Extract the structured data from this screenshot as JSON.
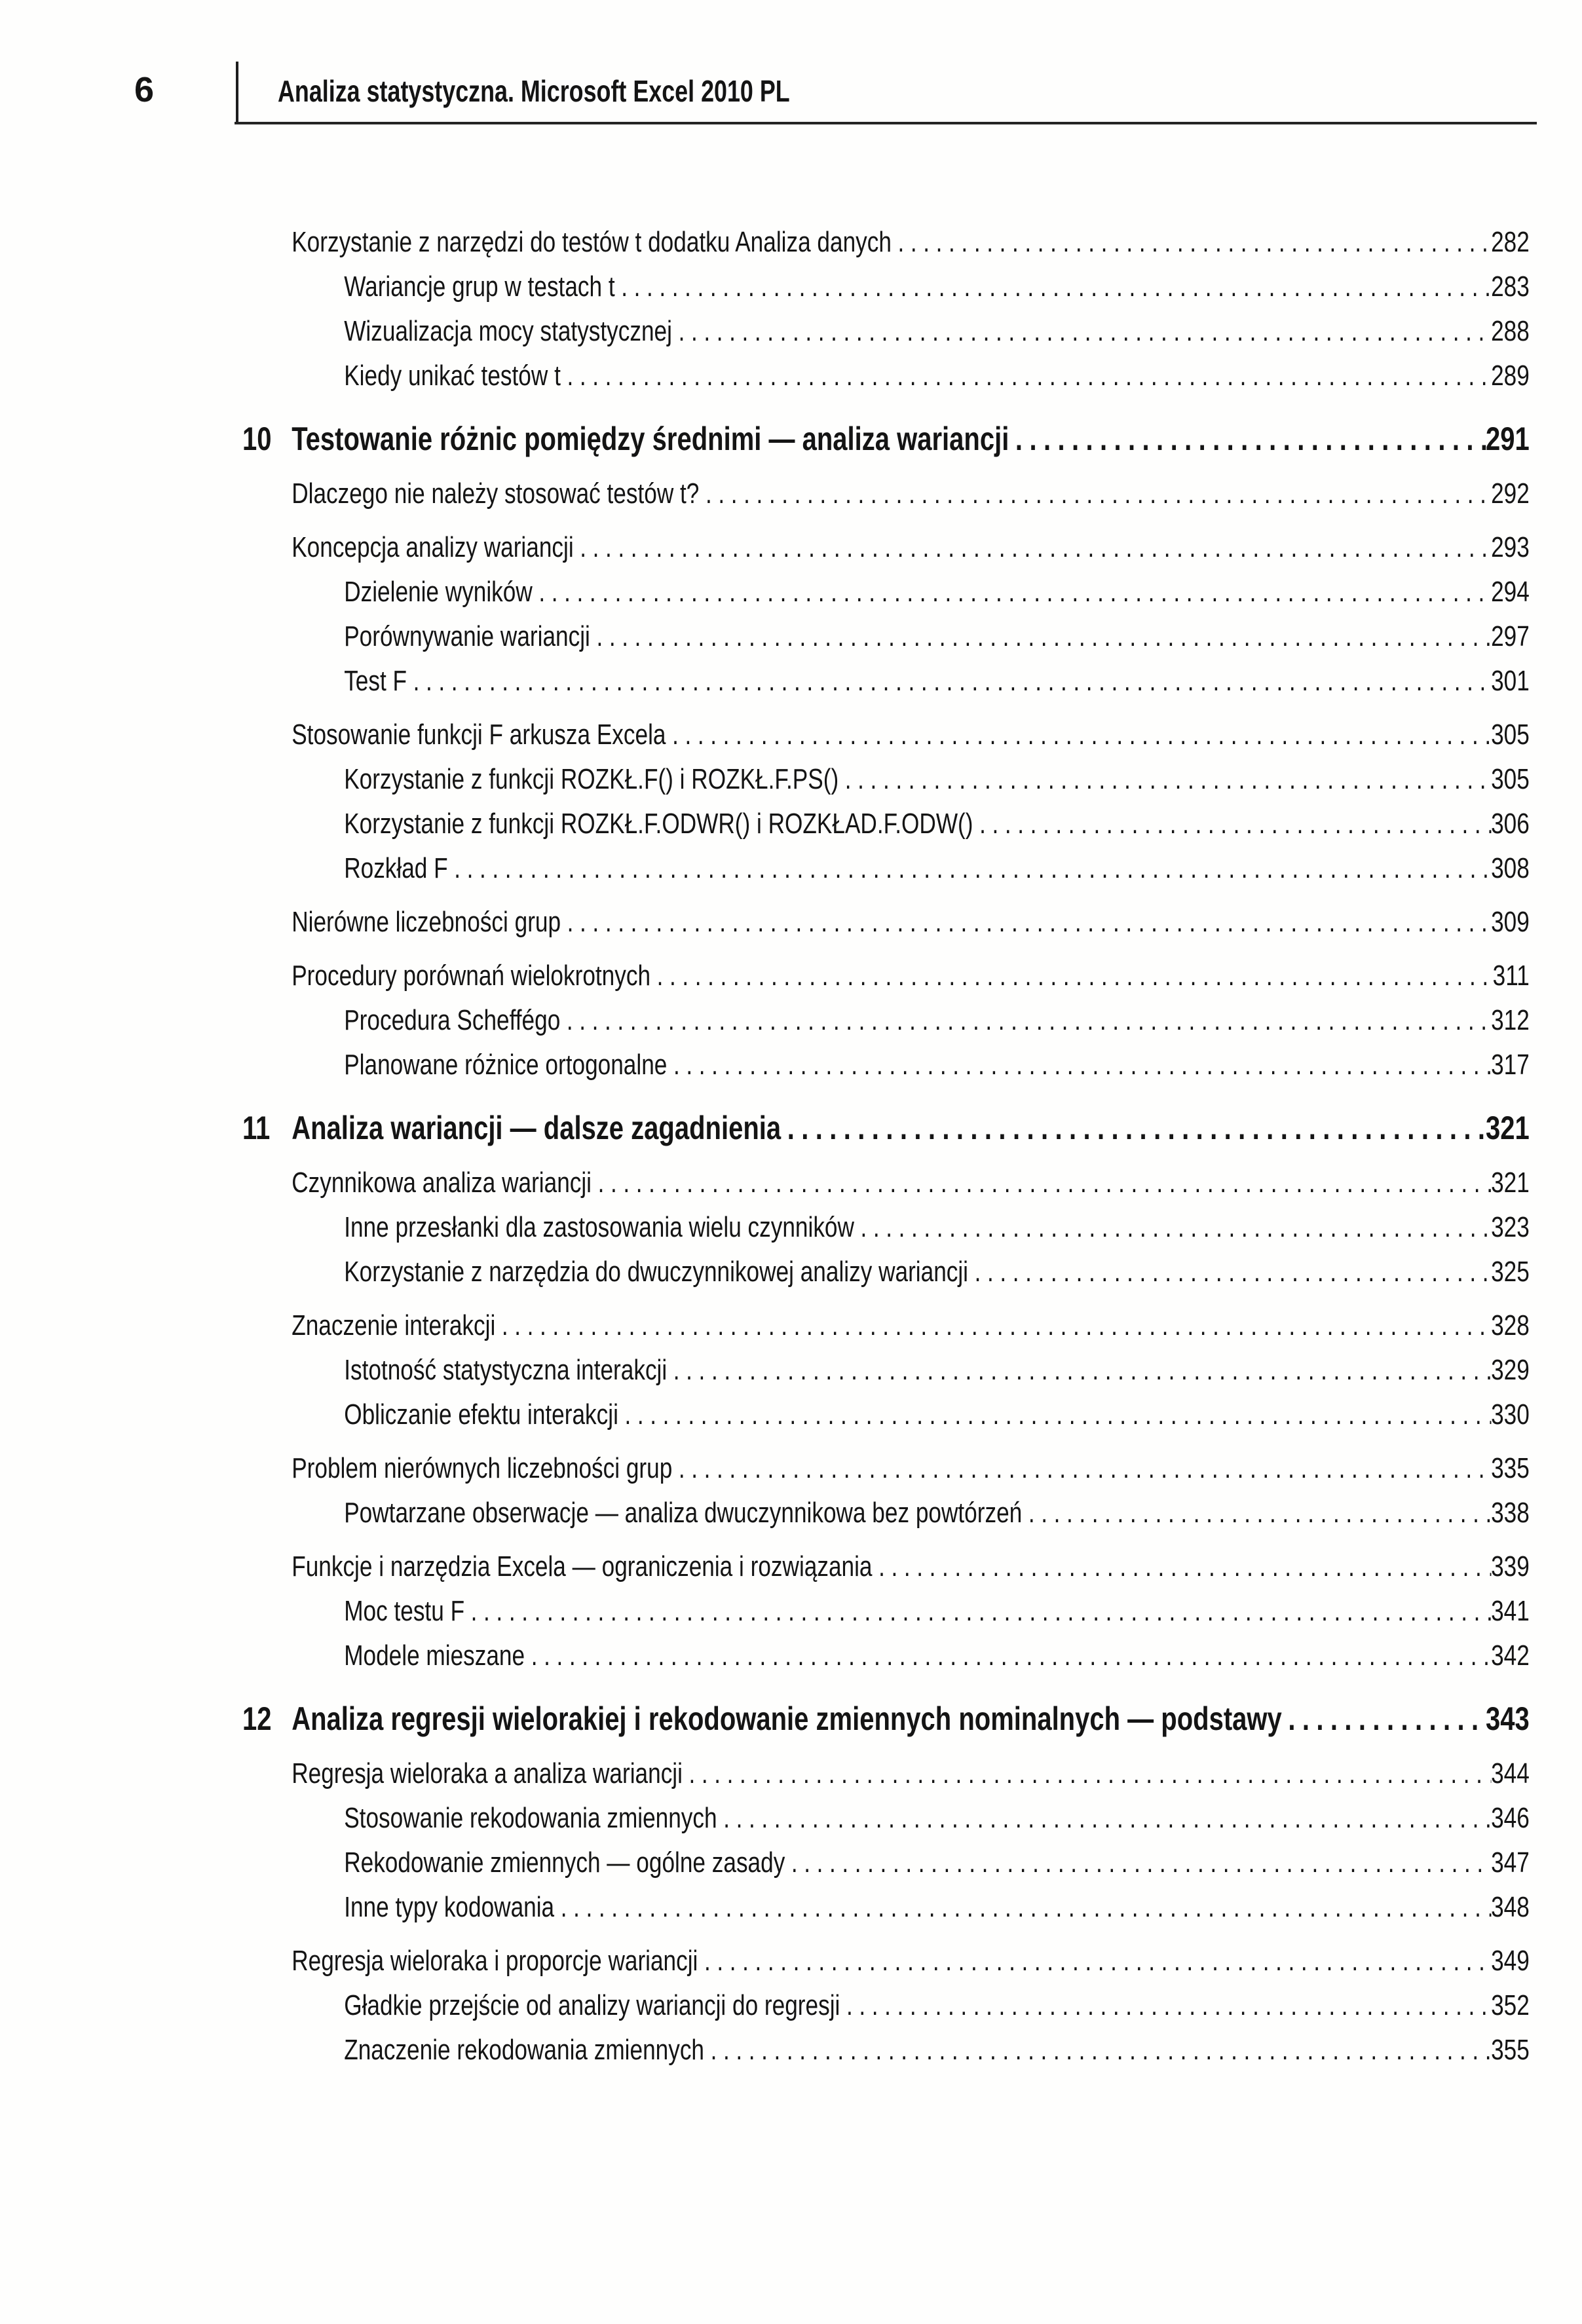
{
  "header": {
    "page_number": "6",
    "running_title": "Analiza statystyczna. Microsoft Excel 2010 PL"
  },
  "toc": {
    "entries": [
      {
        "level": 2,
        "label": "Korzystanie z narzędzi do testów t dodatku Analiza danych",
        "page": "282"
      },
      {
        "level": 3,
        "label": "Wariancje grup w testach t",
        "page": "283"
      },
      {
        "level": 3,
        "label": "Wizualizacja mocy statystycznej",
        "page": "288"
      },
      {
        "level": 3,
        "label": "Kiedy unikać testów t",
        "page": "289"
      },
      {
        "level": 1,
        "number": "10",
        "label": "Testowanie różnic pomiędzy średnimi — analiza wariancji",
        "page": "291"
      },
      {
        "level": 2,
        "label": "Dlaczego nie należy stosować testów t?",
        "page": "292"
      },
      {
        "level": 2,
        "label": "Koncepcja analizy wariancji",
        "page": "293"
      },
      {
        "level": 3,
        "label": "Dzielenie wyników",
        "page": "294"
      },
      {
        "level": 3,
        "label": "Porównywanie wariancji",
        "page": "297"
      },
      {
        "level": 3,
        "label": "Test F",
        "page": "301"
      },
      {
        "level": 2,
        "label": "Stosowanie funkcji F arkusza Excela",
        "page": "305"
      },
      {
        "level": 3,
        "label": "Korzystanie z funkcji ROZKŁ.F() i ROZKŁ.F.PS()",
        "page": "305"
      },
      {
        "level": 3,
        "label": "Korzystanie z funkcji ROZKŁ.F.ODWR() i ROZKŁAD.F.ODW()",
        "page": "306"
      },
      {
        "level": 3,
        "label": "Rozkład F",
        "page": "308"
      },
      {
        "level": 2,
        "label": "Nierówne liczebności grup",
        "page": "309"
      },
      {
        "level": 2,
        "label": "Procedury porównań wielokrotnych",
        "page": "311"
      },
      {
        "level": 3,
        "label": "Procedura Scheffégo",
        "page": "312"
      },
      {
        "level": 3,
        "label": "Planowane różnice ortogonalne",
        "page": "317"
      },
      {
        "level": 1,
        "number": "11",
        "label": "Analiza wariancji — dalsze zagadnienia",
        "page": "321"
      },
      {
        "level": 2,
        "label": "Czynnikowa analiza wariancji",
        "page": "321"
      },
      {
        "level": 3,
        "label": "Inne przesłanki dla zastosowania wielu czynników",
        "page": "323"
      },
      {
        "level": 3,
        "label": "Korzystanie z narzędzia do dwuczynnikowej analizy wariancji",
        "page": "325"
      },
      {
        "level": 2,
        "label": "Znaczenie interakcji",
        "page": "328"
      },
      {
        "level": 3,
        "label": "Istotność statystyczna interakcji",
        "page": "329"
      },
      {
        "level": 3,
        "label": "Obliczanie efektu interakcji",
        "page": "330"
      },
      {
        "level": 2,
        "label": "Problem nierównych liczebności grup",
        "page": "335"
      },
      {
        "level": 3,
        "label": "Powtarzane obserwacje — analiza dwuczynnikowa bez powtórzeń",
        "page": "338"
      },
      {
        "level": 2,
        "label": "Funkcje i narzędzia Excela — ograniczenia i rozwiązania",
        "page": "339"
      },
      {
        "level": 3,
        "label": "Moc testu F",
        "page": "341"
      },
      {
        "level": 3,
        "label": "Modele mieszane",
        "page": "342"
      },
      {
        "level": 1,
        "number": "12",
        "label": "Analiza regresji wielorakiej i rekodowanie zmiennych nominalnych — podstawy",
        "page": "343"
      },
      {
        "level": 2,
        "label": "Regresja wieloraka a analiza wariancji",
        "page": "344"
      },
      {
        "level": 3,
        "label": "Stosowanie rekodowania zmiennych",
        "page": "346"
      },
      {
        "level": 3,
        "label": "Rekodowanie zmiennych — ogólne zasady",
        "page": "347"
      },
      {
        "level": 3,
        "label": "Inne typy kodowania",
        "page": "348"
      },
      {
        "level": 2,
        "label": "Regresja wieloraka i proporcje wariancji",
        "page": "349"
      },
      {
        "level": 3,
        "label": "Gładkie przejście od analizy wariancji do regresji",
        "page": "352"
      },
      {
        "level": 3,
        "label": "Znaczenie rekodowania zmiennych",
        "page": "355"
      }
    ]
  }
}
